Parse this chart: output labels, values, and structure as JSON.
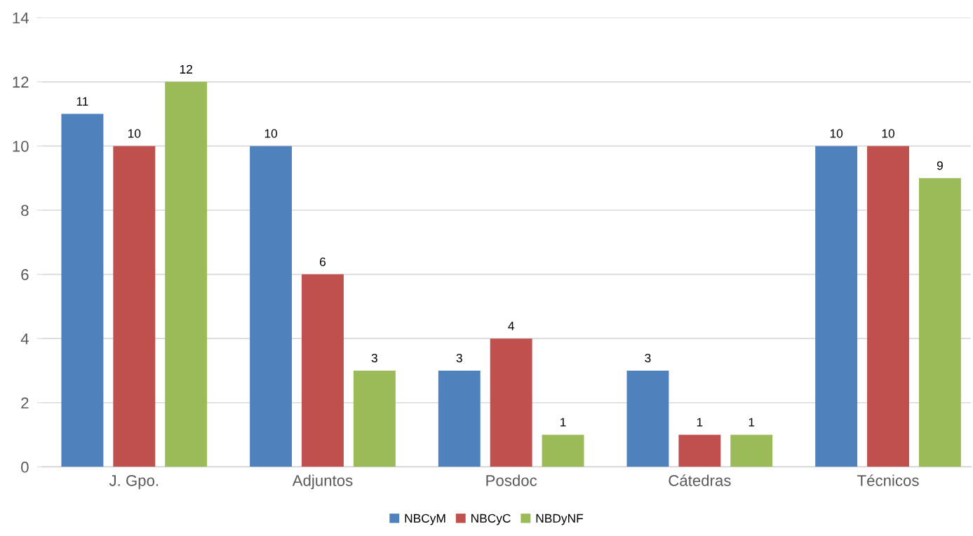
{
  "chart_data": {
    "type": "bar",
    "categories": [
      "J. Gpo.",
      "Adjuntos",
      "Posdoc",
      "Cátedras",
      "Técnicos"
    ],
    "series": [
      {
        "name": "NBCyM",
        "color": "#4f81bd",
        "values": [
          11,
          10,
          3,
          3,
          10
        ]
      },
      {
        "name": "NBCyC",
        "color": "#c0504d",
        "values": [
          10,
          6,
          4,
          1,
          10
        ]
      },
      {
        "name": "NBDyNF",
        "color": "#9bbb59",
        "values": [
          12,
          3,
          1,
          1,
          9
        ]
      }
    ],
    "ylim": [
      0,
      14
    ],
    "yticks": [
      0,
      2,
      4,
      6,
      8,
      10,
      12,
      14
    ],
    "grid": "y",
    "legend": "bottom",
    "data_labels": true
  }
}
